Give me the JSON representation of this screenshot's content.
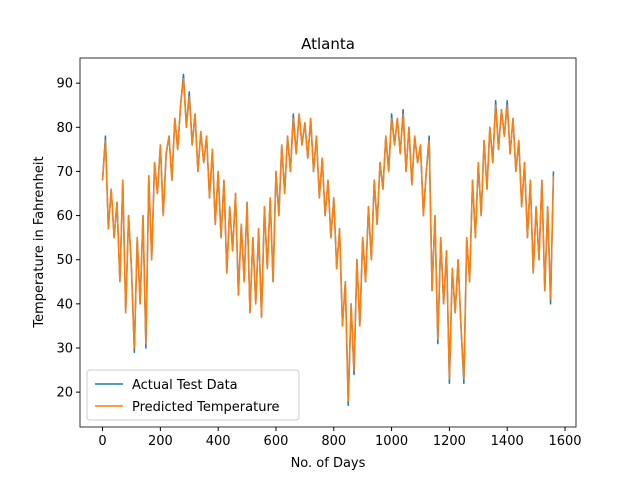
{
  "chart_data": {
    "type": "line",
    "title": "Atlanta",
    "x_label": "No. of Days",
    "y_label": "Temperature in Fahrenheit",
    "xlim": [
      -78,
      1638
    ],
    "ylim": [
      12.1,
      95.7
    ],
    "xticks": [
      0,
      200,
      400,
      600,
      800,
      1000,
      1200,
      1400,
      1600
    ],
    "yticks": [
      20,
      30,
      40,
      50,
      60,
      70,
      80,
      90
    ],
    "grid": false,
    "legend": "lower left",
    "x": [
      0,
      10,
      20,
      30,
      40,
      50,
      60,
      70,
      80,
      90,
      100,
      110,
      120,
      130,
      140,
      150,
      160,
      170,
      180,
      190,
      200,
      210,
      220,
      230,
      240,
      250,
      260,
      270,
      280,
      290,
      300,
      310,
      320,
      330,
      340,
      350,
      360,
      370,
      380,
      390,
      400,
      410,
      420,
      430,
      440,
      450,
      460,
      470,
      480,
      490,
      500,
      510,
      520,
      530,
      540,
      550,
      560,
      570,
      580,
      590,
      600,
      610,
      620,
      630,
      640,
      650,
      660,
      670,
      680,
      690,
      700,
      710,
      720,
      730,
      740,
      750,
      760,
      770,
      780,
      790,
      800,
      810,
      820,
      830,
      840,
      850,
      860,
      870,
      880,
      890,
      900,
      910,
      920,
      930,
      940,
      950,
      960,
      970,
      980,
      990,
      1000,
      1010,
      1020,
      1030,
      1040,
      1050,
      1060,
      1070,
      1080,
      1090,
      1100,
      1110,
      1120,
      1130,
      1140,
      1150,
      1160,
      1170,
      1180,
      1190,
      1200,
      1210,
      1220,
      1230,
      1240,
      1250,
      1260,
      1270,
      1280,
      1290,
      1300,
      1310,
      1320,
      1330,
      1340,
      1350,
      1360,
      1370,
      1380,
      1390,
      1400,
      1410,
      1420,
      1430,
      1440,
      1450,
      1460,
      1470,
      1480,
      1490,
      1500,
      1510,
      1520,
      1530,
      1540,
      1550,
      1560
    ],
    "series": [
      {
        "name": "Actual Test Data",
        "color": "#1f77b4",
        "values": [
          68,
          78,
          57,
          66,
          55,
          63,
          45,
          68,
          38,
          60,
          48,
          29,
          55,
          40,
          60,
          30,
          69,
          50,
          72,
          65,
          76,
          60,
          74,
          78,
          68,
          82,
          75,
          85,
          92,
          80,
          88,
          76,
          83,
          70,
          79,
          72,
          78,
          64,
          75,
          58,
          70,
          55,
          68,
          47,
          62,
          52,
          65,
          42,
          58,
          45,
          63,
          38,
          55,
          40,
          57,
          37,
          62,
          48,
          64,
          45,
          70,
          60,
          76,
          65,
          78,
          70,
          83,
          74,
          83,
          76,
          81,
          73,
          82,
          70,
          78,
          64,
          73,
          60,
          68,
          55,
          64,
          48,
          57,
          35,
          45,
          17,
          40,
          24,
          50,
          35,
          55,
          45,
          62,
          50,
          68,
          58,
          72,
          66,
          78,
          70,
          83,
          76,
          82,
          74,
          84,
          70,
          80,
          67,
          78,
          72,
          76,
          60,
          70,
          78,
          43,
          60,
          31,
          55,
          40,
          52,
          22,
          48,
          38,
          50,
          35,
          22,
          55,
          45,
          68,
          55,
          72,
          60,
          77,
          66,
          80,
          72,
          86,
          75,
          84,
          78,
          86,
          74,
          82,
          70,
          77,
          62,
          72,
          55,
          68,
          47,
          62,
          50,
          68,
          43,
          62,
          40,
          70
        ]
      },
      {
        "name": "Predicted Temperature",
        "color": "#ff7f0e",
        "values": [
          68,
          77,
          57,
          66,
          55,
          63,
          45,
          68,
          38,
          60,
          48,
          30,
          55,
          40,
          60,
          31,
          69,
          50,
          72,
          65,
          76,
          60,
          74,
          78,
          68,
          82,
          75,
          85,
          91,
          80,
          87,
          76,
          83,
          70,
          79,
          72,
          78,
          64,
          75,
          58,
          70,
          55,
          68,
          47,
          62,
          52,
          65,
          42,
          58,
          45,
          63,
          38,
          55,
          40,
          57,
          37,
          62,
          48,
          64,
          45,
          70,
          60,
          76,
          65,
          78,
          70,
          82,
          74,
          83,
          76,
          81,
          73,
          82,
          70,
          78,
          64,
          73,
          60,
          68,
          55,
          64,
          48,
          57,
          35,
          45,
          18,
          40,
          25,
          50,
          35,
          55,
          45,
          62,
          50,
          68,
          58,
          72,
          66,
          78,
          70,
          82,
          76,
          82,
          74,
          83,
          70,
          80,
          67,
          78,
          72,
          76,
          60,
          70,
          77,
          43,
          60,
          32,
          55,
          40,
          52,
          23,
          48,
          38,
          50,
          35,
          23,
          55,
          45,
          68,
          55,
          72,
          60,
          77,
          66,
          80,
          72,
          85,
          75,
          84,
          78,
          85,
          74,
          82,
          70,
          77,
          62,
          72,
          55,
          68,
          47,
          62,
          50,
          68,
          43,
          62,
          41,
          69
        ]
      }
    ]
  }
}
